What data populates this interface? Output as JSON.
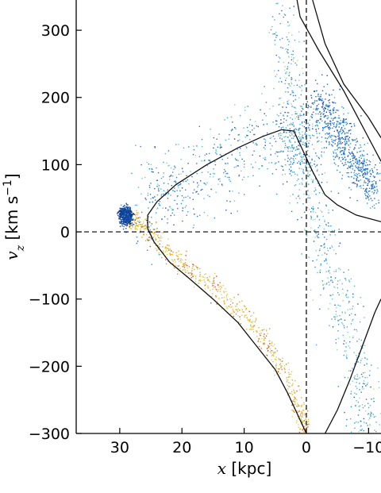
{
  "chart_data": {
    "type": "scatter",
    "title": "",
    "xlabel": {
      "symbol": "x",
      "unit": " [kpc]"
    },
    "ylabel": {
      "symbol": "v",
      "subscript": "z",
      "unit_main": " [km s",
      "unit_sup": "−1",
      "unit_close": "]"
    },
    "xlim": [
      37,
      -12
    ],
    "ylim": [
      -300,
      345
    ],
    "x_ticks": [
      30,
      20,
      10,
      0,
      -10
    ],
    "x_tick_labels": [
      "30",
      "20",
      "10",
      "0",
      "−10"
    ],
    "y_ticks": [
      -300,
      -200,
      -100,
      0,
      100,
      200,
      300
    ],
    "y_tick_labels": [
      "−300",
      "−200",
      "−100",
      "0",
      "100",
      "200",
      "300"
    ],
    "reference_lines": [
      {
        "axis": "y",
        "value": 0,
        "style": "dashed"
      },
      {
        "axis": "x",
        "value": 0,
        "style": "dashed"
      }
    ],
    "color_scale": [
      "#08306b",
      "#1f5fd0",
      "#3aa0e0",
      "#7fd6c8",
      "#d7e060",
      "#f5a020",
      "#d62010"
    ],
    "density_regions": [
      {
        "name": "leading-arm",
        "points": [
          [
            29,
            25
          ],
          [
            27.5,
            15
          ],
          [
            25,
            -5
          ],
          [
            22,
            -30
          ],
          [
            18,
            -60
          ],
          [
            14,
            -90
          ],
          [
            10,
            -125
          ],
          [
            6,
            -170
          ],
          [
            3,
            -220
          ],
          [
            1,
            -270
          ],
          [
            0,
            -300
          ]
        ],
        "spread": 12,
        "color_range": [
          0.55,
          1.0
        ]
      },
      {
        "name": "apocenter-clump",
        "points": [
          [
            30,
            28
          ],
          [
            29,
            30
          ],
          [
            28.5,
            22
          ],
          [
            29.5,
            18
          ]
        ],
        "spread": 7,
        "color_range": [
          0.0,
          0.15
        ]
      },
      {
        "name": "trailing-upper",
        "points": [
          [
            27,
            30
          ],
          [
            24,
            50
          ],
          [
            20,
            75
          ],
          [
            15,
            100
          ],
          [
            10,
            120
          ],
          [
            5,
            140
          ],
          [
            2,
            145
          ],
          [
            0,
            130
          ],
          [
            -1,
            100
          ]
        ],
        "spread": 45,
        "color_range": [
          0.05,
          0.55
        ]
      },
      {
        "name": "vertical-stream",
        "points": [
          [
            4,
            330
          ],
          [
            3,
            250
          ],
          [
            2,
            180
          ],
          [
            1,
            120
          ],
          [
            0,
            60
          ],
          [
            -2,
            0
          ],
          [
            -4,
            -60
          ],
          [
            -6,
            -120
          ],
          [
            -8,
            -190
          ],
          [
            -9,
            -260
          ],
          [
            -10,
            -300
          ]
        ],
        "spread": 30,
        "color_range": [
          0.1,
          0.65
        ]
      },
      {
        "name": "upper-right-stream",
        "points": [
          [
            -2,
            200
          ],
          [
            -5,
            150
          ],
          [
            -8,
            100
          ],
          [
            -11,
            60
          ]
        ],
        "spread": 25,
        "color_range": [
          0.05,
          0.4
        ]
      }
    ],
    "orbit_curves": [
      {
        "name": "orbit-left",
        "points": [
          [
            0,
            -300
          ],
          [
            1,
            -280
          ],
          [
            3,
            -240
          ],
          [
            5,
            -205
          ],
          [
            8,
            -170
          ],
          [
            11,
            -135
          ],
          [
            15,
            -100
          ],
          [
            19,
            -68
          ],
          [
            22,
            -45
          ],
          [
            24.5,
            -15
          ],
          [
            25.5,
            5
          ],
          [
            25.5,
            25
          ],
          [
            24,
            45
          ],
          [
            21,
            70
          ],
          [
            16,
            100
          ],
          [
            11,
            125
          ],
          [
            7,
            142
          ],
          [
            4,
            152
          ],
          [
            2,
            150
          ],
          [
            0.5,
            120
          ],
          [
            -1,
            90
          ],
          [
            -3,
            55
          ],
          [
            -5,
            40
          ],
          [
            -8,
            25
          ],
          [
            -12,
            15
          ]
        ]
      },
      {
        "name": "orbit-right",
        "points": [
          [
            1.5,
            345
          ],
          [
            1,
            320
          ],
          [
            -0.5,
            295
          ],
          [
            -2,
            270
          ],
          [
            -4,
            240
          ],
          [
            -6,
            210
          ],
          [
            -8,
            175
          ],
          [
            -10,
            140
          ],
          [
            -12,
            105
          ]
        ]
      },
      {
        "name": "orbit-lower",
        "points": [
          [
            -3,
            -300
          ],
          [
            -5,
            -265
          ],
          [
            -7,
            -220
          ],
          [
            -9,
            -170
          ],
          [
            -11,
            -120
          ],
          [
            -12,
            -100
          ]
        ]
      },
      {
        "name": "orbit-far-right",
        "points": [
          [
            -1,
            345
          ],
          [
            -3,
            280
          ],
          [
            -6,
            220
          ],
          [
            -10,
            170
          ],
          [
            -12,
            140
          ]
        ]
      }
    ]
  }
}
